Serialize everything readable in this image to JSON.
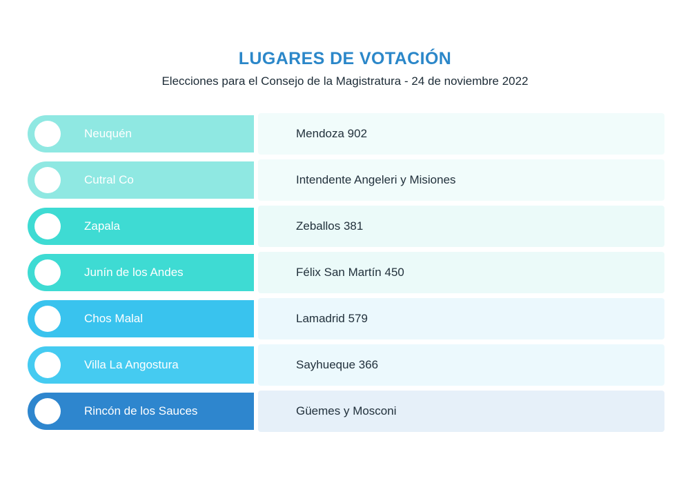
{
  "header": {
    "title": "LUGARES DE VOTACIÓN",
    "subtitle": "Elecciones para el Consejo de la Magistratura - 24 de noviembre 2022"
  },
  "colors": {
    "title_accent": "#2B87C9",
    "subtitle_text": "#1C2B36",
    "address_text": "#22313C",
    "pill_label_text": "#FFFFFF",
    "bullet_circle": "#FFFFFF"
  },
  "rows": [
    {
      "city": "Neuquén",
      "address": "Mendoza 902",
      "pill_color": "#8FE8E2",
      "band_color": "#F1FCFB"
    },
    {
      "city": "Cutral Co",
      "address": "Intendente Angeleri y Misiones",
      "pill_color": "#8FE8E2",
      "band_color": "#F1FCFB"
    },
    {
      "city": "Zapala",
      "address": "Zeballos 381",
      "pill_color": "#3EDBD3",
      "band_color": "#EBFAF9"
    },
    {
      "city": "Junín de los Andes",
      "address": "Félix San Martín 450",
      "pill_color": "#3EDBD3",
      "band_color": "#EBFAF9"
    },
    {
      "city": "Chos Malal",
      "address": "Lamadrid 579",
      "pill_color": "#39C3EE",
      "band_color": "#EBF8FD"
    },
    {
      "city": "Villa La Angostura",
      "address": "Sayhueque 366",
      "pill_color": "#45CBF1",
      "band_color": "#ECF9FD"
    },
    {
      "city": "Rincón de los Sauces",
      "address": "Güemes y Mosconi",
      "pill_color": "#2E86CE",
      "band_color": "#E6F0F9"
    }
  ]
}
